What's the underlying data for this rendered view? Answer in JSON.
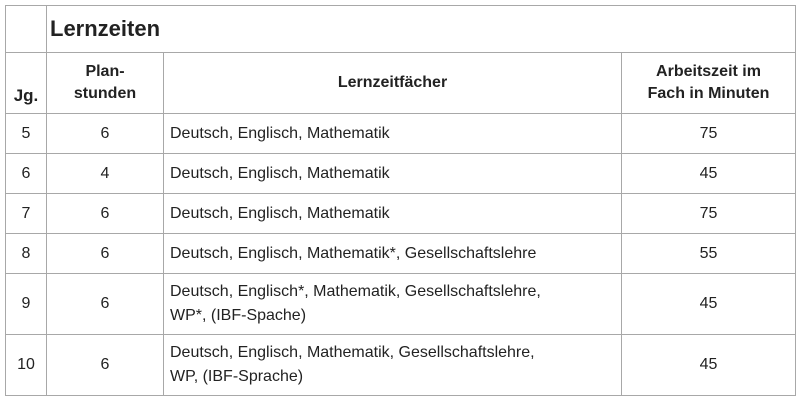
{
  "table": {
    "title": "Lernzeiten",
    "headers": {
      "jg": "Jg.",
      "planstunden_line1": "Plan-",
      "planstunden_line2": "stunden",
      "faecher": "Lernzeitfächer",
      "arbeitszeit_line1": "Arbeitszeit im",
      "arbeitszeit_line2": "Fach in Minuten"
    },
    "rows": [
      {
        "jg": "5",
        "plan": "6",
        "faecher": "Deutsch, Englisch, Mathematik",
        "faecher2": "",
        "minuten": "75"
      },
      {
        "jg": "6",
        "plan": "4",
        "faecher": "Deutsch, Englisch, Mathematik",
        "faecher2": "",
        "minuten": "45"
      },
      {
        "jg": "7",
        "plan": "6",
        "faecher": "Deutsch, Englisch, Mathematik",
        "faecher2": "",
        "minuten": "75"
      },
      {
        "jg": "8",
        "plan": "6",
        "faecher": "Deutsch, Englisch, Mathematik*, Gesellschaftslehre",
        "faecher2": "",
        "minuten": "55"
      },
      {
        "jg": "9",
        "plan": "6",
        "faecher": "Deutsch, Englisch*, Mathematik, Gesellschaftslehre,",
        "faecher2": "WP*, (IBF-Spache)",
        "minuten": "45"
      },
      {
        "jg": "10",
        "plan": "6",
        "faecher": "Deutsch, Englisch, Mathematik, Gesellschaftslehre,",
        "faecher2": "WP, (IBF-Sprache)",
        "minuten": "45"
      }
    ]
  }
}
